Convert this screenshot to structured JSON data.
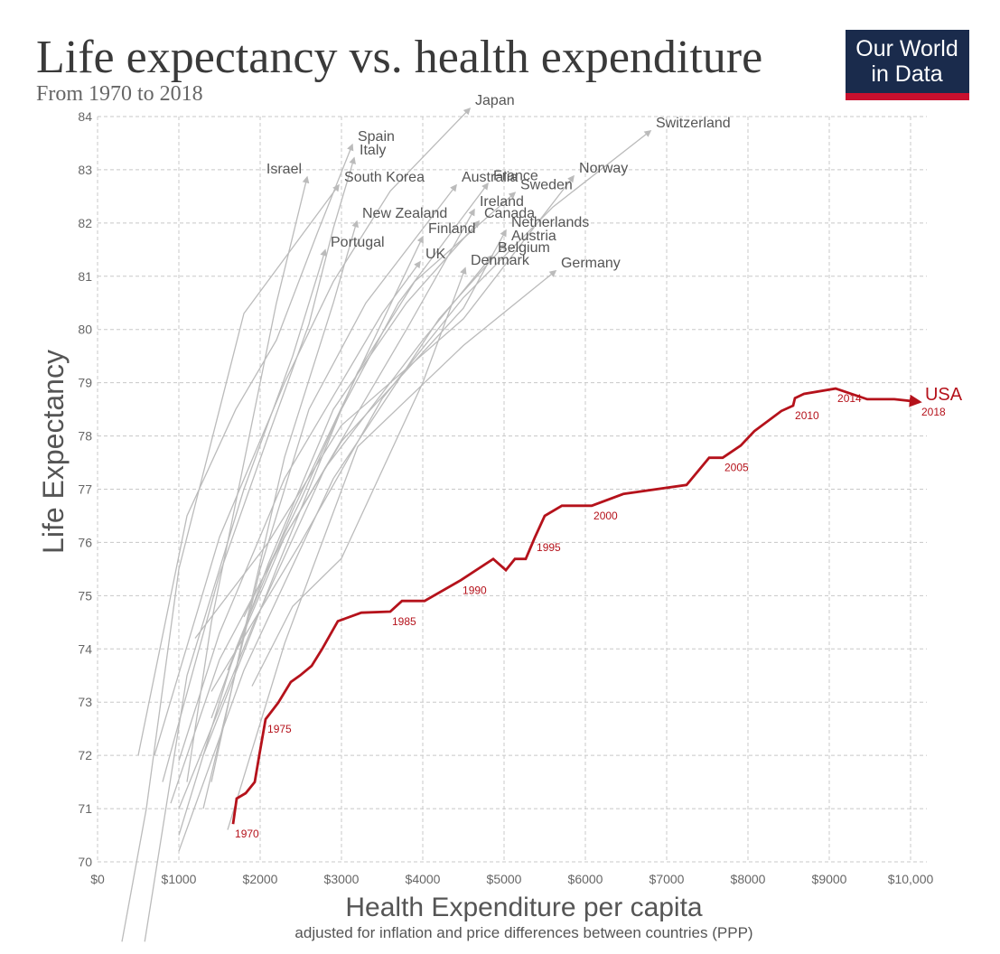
{
  "logo": {
    "line1": "Our World",
    "line2": "in Data"
  },
  "chart_data": {
    "type": "line",
    "title": "Life expectancy vs. health expenditure",
    "subtitle": "From 1970 to 2018",
    "x_label": "Health Expenditure per capita",
    "x_sublabel": "adjusted for inflation and price differences between countries (PPP)",
    "y_label": "Life Expectancy",
    "xlim": [
      0,
      10000
    ],
    "ylim": [
      70,
      84
    ],
    "xticks": [
      {
        "value": 0,
        "label": "$0"
      },
      {
        "value": 1000,
        "label": "$1000"
      },
      {
        "value": 2000,
        "label": "$2000"
      },
      {
        "value": 3000,
        "label": "$3000"
      },
      {
        "value": 4000,
        "label": "$4000"
      },
      {
        "value": 5000,
        "label": "$5000"
      },
      {
        "value": 6000,
        "label": "$6000"
      },
      {
        "value": 7000,
        "label": "$7000"
      },
      {
        "value": 8000,
        "label": "$8000"
      },
      {
        "value": 9000,
        "label": "$9000"
      },
      {
        "value": 10000,
        "label": "$10,000"
      }
    ],
    "yticks": [
      70,
      71,
      72,
      73,
      74,
      75,
      76,
      77,
      78,
      79,
      80,
      81,
      82,
      83,
      84
    ],
    "grid": true,
    "series": [
      {
        "name": "Japan",
        "color": "#bbbbbb",
        "x": [
          700,
          1500,
          2300,
          2900,
          3600,
          4578
        ],
        "y": [
          72.0,
          76.1,
          79.0,
          80.9,
          82.6,
          84.15
        ]
      },
      {
        "name": "Switzerland",
        "color": "#bbbbbb",
        "x": [
          1400,
          2500,
          3500,
          4500,
          5600,
          6800
        ],
        "y": [
          73.2,
          76.0,
          78.7,
          80.6,
          82.3,
          83.73
        ]
      },
      {
        "name": "Spain",
        "color": "#bbbbbb",
        "x": [
          500,
          1100,
          1700,
          2200,
          2700,
          3133
        ],
        "y": [
          72.0,
          76.5,
          78.5,
          79.8,
          81.8,
          83.47
        ]
      },
      {
        "name": "Italy",
        "color": "#bbbbbb",
        "x": [
          800,
          1500,
          2100,
          2600,
          2900,
          3156
        ],
        "y": [
          71.5,
          75.4,
          78.0,
          80.1,
          81.9,
          83.22
        ]
      },
      {
        "name": "Israel",
        "color": "#bbbbbb",
        "label_anchor": "end",
        "x": [
          1100,
          1400,
          1800,
          2200,
          2578
        ],
        "y": [
          71.5,
          74.5,
          77.5,
          80.5,
          82.86
        ]
      },
      {
        "name": "South Korea",
        "color": "#bbbbbb",
        "x": [
          300,
          600,
          1000,
          1800,
          2967
        ],
        "y": [
          68.5,
          71.0,
          75.5,
          80.3,
          82.71
        ]
      },
      {
        "name": "Australia",
        "color": "#bbbbbb",
        "x": [
          1300,
          2000,
          2600,
          3300,
          4411
        ],
        "y": [
          71.0,
          75.5,
          78.5,
          80.5,
          82.71
        ]
      },
      {
        "name": "France",
        "color": "#bbbbbb",
        "x": [
          1300,
          2200,
          3000,
          3700,
          4800
        ],
        "y": [
          72.0,
          75.5,
          78.5,
          80.5,
          82.74
        ]
      },
      {
        "name": "Norway",
        "color": "#bbbbbb",
        "x": [
          1200,
          2100,
          3000,
          4500,
          5856
        ],
        "y": [
          74.2,
          76.0,
          78.2,
          80.2,
          82.88
        ]
      },
      {
        "name": "Sweden",
        "color": "#bbbbbb",
        "x": [
          1800,
          2500,
          3200,
          3900,
          5133
        ],
        "y": [
          74.6,
          76.8,
          79.2,
          80.9,
          82.57
        ]
      },
      {
        "name": "Ireland",
        "color": "#bbbbbb",
        "x": [
          900,
          1500,
          2300,
          3800,
          4633
        ],
        "y": [
          71.1,
          73.8,
          76.1,
          80.0,
          82.25
        ]
      },
      {
        "name": "New Zealand",
        "color": "#bbbbbb",
        "x": [
          1400,
          1800,
          2300,
          2900,
          3189
        ],
        "y": [
          71.5,
          74.3,
          77.6,
          80.5,
          82.03
        ]
      },
      {
        "name": "Canada",
        "color": "#bbbbbb",
        "x": [
          1400,
          2100,
          2900,
          3800,
          4689
        ],
        "y": [
          72.7,
          75.6,
          78.5,
          80.5,
          82.03
        ]
      },
      {
        "name": "Netherlands",
        "color": "#bbbbbb",
        "x": [
          1600,
          2300,
          3000,
          4500,
          5022
        ],
        "y": [
          73.6,
          76.1,
          77.9,
          80.4,
          81.86
        ]
      },
      {
        "name": "Finland",
        "color": "#bbbbbb",
        "x": [
          1000,
          1700,
          2400,
          3300,
          4000
        ],
        "y": [
          70.5,
          74.0,
          76.6,
          79.5,
          81.74
        ]
      },
      {
        "name": "Austria",
        "color": "#bbbbbb",
        "x": [
          1000,
          1800,
          2900,
          4200,
          5022
        ],
        "y": [
          70.2,
          73.6,
          77.2,
          80.2,
          81.61
        ]
      },
      {
        "name": "Portugal",
        "color": "#bbbbbb",
        "x": [
          580,
          1100,
          1800,
          2400,
          2800
        ],
        "y": [
          68.5,
          73.5,
          77.0,
          79.5,
          81.49
        ]
      },
      {
        "name": "Belgium",
        "color": "#bbbbbb",
        "x": [
          1000,
          1900,
          2800,
          4000,
          4856
        ],
        "y": [
          71.0,
          74.4,
          77.4,
          79.8,
          81.39
        ]
      },
      {
        "name": "UK",
        "color": "#bbbbbb",
        "x": [
          1000,
          1500,
          2300,
          3500,
          3967
        ],
        "y": [
          71.9,
          74.3,
          77.2,
          80.3,
          81.27
        ]
      },
      {
        "name": "Germany",
        "color": "#bbbbbb",
        "x": [
          1600,
          2300,
          3200,
          4500,
          5633
        ],
        "y": [
          70.6,
          74.1,
          77.8,
          79.7,
          81.1
        ]
      },
      {
        "name": "Denmark",
        "color": "#bbbbbb",
        "x": [
          1900,
          2400,
          3000,
          4000,
          4522
        ],
        "y": [
          73.3,
          74.8,
          75.7,
          79.0,
          81.15
        ]
      },
      {
        "name": "USA",
        "color": "#b5121b",
        "highlight": true,
        "x": [
          1667,
          1711,
          1822,
          1933,
          1989,
          2067,
          2222,
          2378,
          2489,
          2633,
          2767,
          2956,
          3244,
          3600,
          3744,
          4022,
          4467,
          4867,
          5022,
          5133,
          5267,
          5378,
          5500,
          5711,
          6078,
          6467,
          7244,
          7522,
          7689,
          7911,
          8078,
          8411,
          8556,
          8578,
          8689,
          9078,
          9467,
          9800,
          10111
        ],
        "y": [
          70.71,
          71.19,
          71.29,
          71.5,
          72.0,
          72.68,
          72.99,
          73.38,
          73.5,
          73.68,
          74.01,
          74.52,
          74.68,
          74.7,
          74.9,
          74.9,
          75.29,
          75.69,
          75.48,
          75.69,
          75.69,
          76.09,
          76.5,
          76.69,
          76.69,
          76.91,
          77.08,
          77.59,
          77.59,
          77.82,
          78.09,
          78.47,
          78.57,
          78.71,
          78.79,
          78.89,
          78.69,
          78.69,
          78.64
        ],
        "point_labels": [
          "1970",
          null,
          null,
          null,
          null,
          "1975",
          null,
          null,
          null,
          null,
          null,
          null,
          null,
          "1985",
          null,
          null,
          "1990",
          null,
          null,
          null,
          null,
          "1995",
          null,
          null,
          "2000",
          null,
          null,
          null,
          "2005",
          null,
          null,
          null,
          "2010",
          null,
          null,
          "2014",
          null,
          null,
          "2018"
        ]
      }
    ]
  }
}
